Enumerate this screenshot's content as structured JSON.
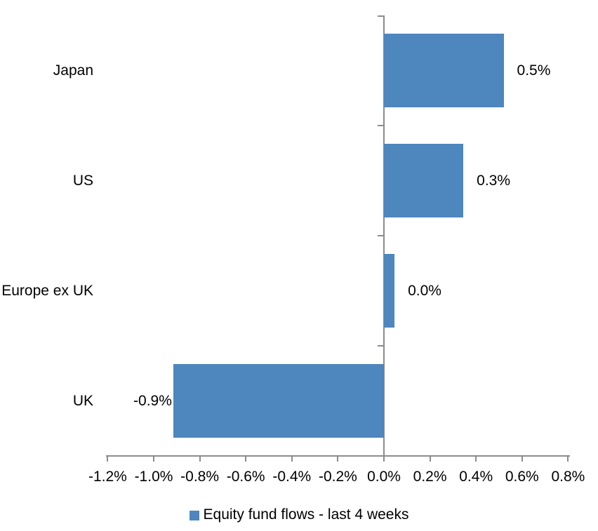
{
  "chart_data": {
    "type": "bar",
    "orientation": "horizontal",
    "categories": [
      "Japan",
      "US",
      "Europe ex UK",
      "UK"
    ],
    "values": [
      0.5,
      0.3,
      0.0,
      -0.9
    ],
    "values_precise": [
      0.52,
      0.345,
      0.046,
      -0.915
    ],
    "data_labels": [
      "0.5%",
      "0.3%",
      "0.0%",
      "-0.9%"
    ],
    "series": [
      {
        "name": "Equity fund flows - last 4 weeks",
        "values": [
          0.5,
          0.3,
          0.0,
          -0.9
        ]
      }
    ],
    "xlabel": "",
    "ylabel": "",
    "xlim": [
      -1.2,
      0.8
    ],
    "x_tick_step": 0.2,
    "x_tick_values": [
      -1.2,
      -1.0,
      -0.8,
      -0.6,
      -0.4,
      -0.2,
      0.0,
      0.2,
      0.4,
      0.6,
      0.8
    ],
    "x_tick_labels": [
      "-1.2%",
      "-1.0%",
      "-0.8%",
      "-0.6%",
      "-0.4%",
      "-0.2%",
      "0.0%",
      "0.2%",
      "0.4%",
      "0.6%",
      "0.8%"
    ],
    "grid": false,
    "legend": {
      "position": "bottom",
      "label": "Equity fund flows - last 4 weeks"
    },
    "colors": {
      "bar": "#4E86BE",
      "axis": "#8C8C8C",
      "text": "#000000"
    }
  }
}
